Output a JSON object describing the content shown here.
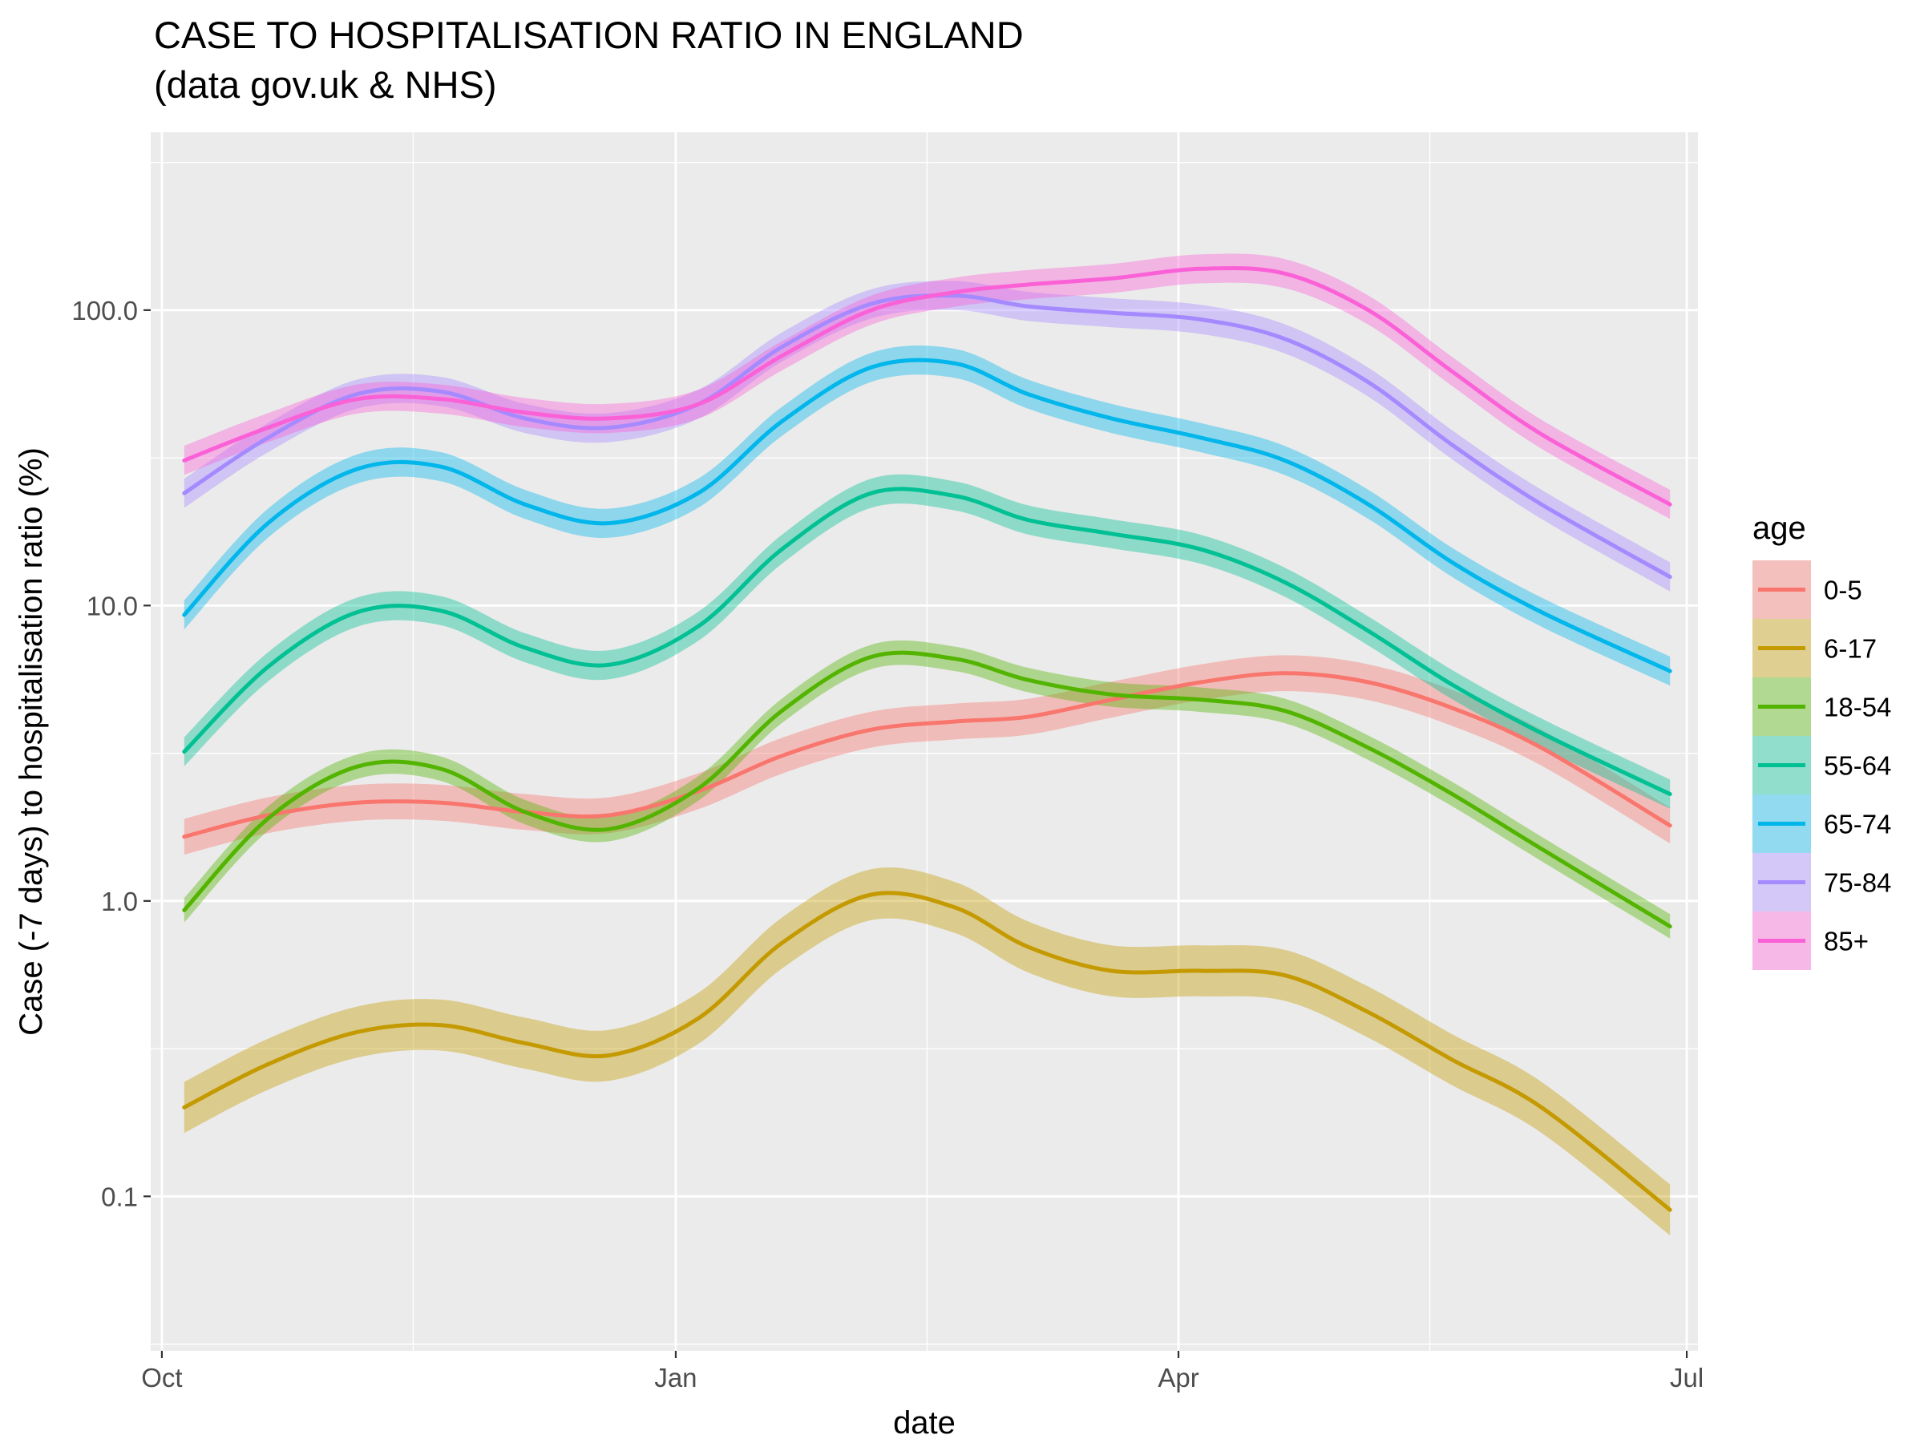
{
  "chart_data": {
    "type": "line",
    "title": "CASE TO HOSPITALISATION RATIO IN ENGLAND",
    "subtitle": "(data gov.uk & NHS)",
    "xlabel": "date",
    "ylabel": "Case (-7 days) to hospitalisation ratio (%)",
    "y_scale": "log10",
    "ylim": [
      0.03,
      400
    ],
    "xlim": [
      "2020-09-29",
      "2021-07-03"
    ],
    "x_ticks": [
      {
        "label": "Oct",
        "date": "2020-10-01"
      },
      {
        "label": "Jan",
        "date": "2021-01-01"
      },
      {
        "label": "Apr",
        "date": "2021-04-01"
      },
      {
        "label": "Jul",
        "date": "2021-07-01"
      }
    ],
    "x_minor_gridlines": [
      "2020-11-15",
      "2021-02-15",
      "2021-05-16"
    ],
    "y_ticks": [
      {
        "label": "0.1",
        "value": 0.1
      },
      {
        "label": "1.0",
        "value": 1
      },
      {
        "label": "10.0",
        "value": 10
      },
      {
        "label": "100.0",
        "value": 100
      }
    ],
    "y_minor_gridlines": [
      0.0316,
      0.316,
      3.16,
      31.6,
      316
    ],
    "grid": true,
    "legend": {
      "title": "age",
      "position": "right"
    },
    "band_opacity": 0.4,
    "series": [
      {
        "name": "0-5",
        "color": "#F8766D",
        "band_rel": 0.15,
        "points": [
          {
            "x": "2020-10-05",
            "y": 1.65
          },
          {
            "x": "2020-10-20",
            "y": 1.95
          },
          {
            "x": "2020-11-05",
            "y": 2.15
          },
          {
            "x": "2020-11-20",
            "y": 2.15
          },
          {
            "x": "2020-12-05",
            "y": 2.0
          },
          {
            "x": "2020-12-20",
            "y": 1.95
          },
          {
            "x": "2021-01-05",
            "y": 2.35
          },
          {
            "x": "2021-01-20",
            "y": 3.1
          },
          {
            "x": "2021-02-05",
            "y": 3.8
          },
          {
            "x": "2021-02-20",
            "y": 4.05
          },
          {
            "x": "2021-03-05",
            "y": 4.2
          },
          {
            "x": "2021-03-20",
            "y": 4.8
          },
          {
            "x": "2021-04-05",
            "y": 5.5
          },
          {
            "x": "2021-04-20",
            "y": 5.9
          },
          {
            "x": "2021-05-05",
            "y": 5.5
          },
          {
            "x": "2021-05-20",
            "y": 4.5
          },
          {
            "x": "2021-06-05",
            "y": 3.3
          },
          {
            "x": "2021-06-28",
            "y": 1.8
          }
        ]
      },
      {
        "name": "6-17",
        "color": "#C49A00",
        "band_rel": 0.22,
        "points": [
          {
            "x": "2020-10-05",
            "y": 0.2
          },
          {
            "x": "2020-10-20",
            "y": 0.28
          },
          {
            "x": "2020-11-05",
            "y": 0.36
          },
          {
            "x": "2020-11-20",
            "y": 0.38
          },
          {
            "x": "2020-12-05",
            "y": 0.33
          },
          {
            "x": "2020-12-20",
            "y": 0.3
          },
          {
            "x": "2021-01-05",
            "y": 0.4
          },
          {
            "x": "2021-01-20",
            "y": 0.72
          },
          {
            "x": "2021-02-05",
            "y": 1.05
          },
          {
            "x": "2021-02-20",
            "y": 0.95
          },
          {
            "x": "2021-03-05",
            "y": 0.7
          },
          {
            "x": "2021-03-20",
            "y": 0.58
          },
          {
            "x": "2021-04-05",
            "y": 0.58
          },
          {
            "x": "2021-04-20",
            "y": 0.56
          },
          {
            "x": "2021-05-05",
            "y": 0.42
          },
          {
            "x": "2021-05-20",
            "y": 0.29
          },
          {
            "x": "2021-06-05",
            "y": 0.2
          },
          {
            "x": "2021-06-28",
            "y": 0.09
          }
        ]
      },
      {
        "name": "18-54",
        "color": "#53B400",
        "band_rel": 0.1,
        "points": [
          {
            "x": "2020-10-05",
            "y": 0.93
          },
          {
            "x": "2020-10-20",
            "y": 1.9
          },
          {
            "x": "2020-11-05",
            "y": 2.85
          },
          {
            "x": "2020-11-20",
            "y": 2.8
          },
          {
            "x": "2020-12-05",
            "y": 2.0
          },
          {
            "x": "2020-12-20",
            "y": 1.75
          },
          {
            "x": "2021-01-05",
            "y": 2.4
          },
          {
            "x": "2021-01-20",
            "y": 4.4
          },
          {
            "x": "2021-02-05",
            "y": 6.7
          },
          {
            "x": "2021-02-20",
            "y": 6.6
          },
          {
            "x": "2021-03-05",
            "y": 5.6
          },
          {
            "x": "2021-03-20",
            "y": 5.0
          },
          {
            "x": "2021-04-05",
            "y": 4.8
          },
          {
            "x": "2021-04-20",
            "y": 4.4
          },
          {
            "x": "2021-05-05",
            "y": 3.3
          },
          {
            "x": "2021-05-20",
            "y": 2.3
          },
          {
            "x": "2021-06-05",
            "y": 1.5
          },
          {
            "x": "2021-06-28",
            "y": 0.82
          }
        ]
      },
      {
        "name": "55-64",
        "color": "#00C094",
        "band_rel": 0.12,
        "points": [
          {
            "x": "2020-10-05",
            "y": 3.2
          },
          {
            "x": "2020-10-20",
            "y": 6.2
          },
          {
            "x": "2020-11-05",
            "y": 9.5
          },
          {
            "x": "2020-11-20",
            "y": 9.6
          },
          {
            "x": "2020-12-05",
            "y": 7.2
          },
          {
            "x": "2020-12-20",
            "y": 6.3
          },
          {
            "x": "2021-01-05",
            "y": 8.5
          },
          {
            "x": "2021-01-20",
            "y": 15.5
          },
          {
            "x": "2021-02-05",
            "y": 24.0
          },
          {
            "x": "2021-02-20",
            "y": 23.5
          },
          {
            "x": "2021-03-05",
            "y": 19.5
          },
          {
            "x": "2021-03-20",
            "y": 17.5
          },
          {
            "x": "2021-04-05",
            "y": 15.5
          },
          {
            "x": "2021-04-20",
            "y": 12.0
          },
          {
            "x": "2021-05-05",
            "y": 8.2
          },
          {
            "x": "2021-05-20",
            "y": 5.4
          },
          {
            "x": "2021-06-05",
            "y": 3.7
          },
          {
            "x": "2021-06-28",
            "y": 2.3
          }
        ]
      },
      {
        "name": "65-74",
        "color": "#00B6EB",
        "band_rel": 0.12,
        "points": [
          {
            "x": "2020-10-05",
            "y": 9.3
          },
          {
            "x": "2020-10-20",
            "y": 19.0
          },
          {
            "x": "2020-11-05",
            "y": 29.0
          },
          {
            "x": "2020-11-20",
            "y": 29.5
          },
          {
            "x": "2020-12-05",
            "y": 22.0
          },
          {
            "x": "2020-12-20",
            "y": 19.0
          },
          {
            "x": "2021-01-05",
            "y": 24.0
          },
          {
            "x": "2021-01-20",
            "y": 42.0
          },
          {
            "x": "2021-02-05",
            "y": 64.0
          },
          {
            "x": "2021-02-20",
            "y": 66.0
          },
          {
            "x": "2021-03-05",
            "y": 52.0
          },
          {
            "x": "2021-03-20",
            "y": 43.0
          },
          {
            "x": "2021-04-05",
            "y": 37.0
          },
          {
            "x": "2021-04-20",
            "y": 31.0
          },
          {
            "x": "2021-05-05",
            "y": 22.0
          },
          {
            "x": "2021-05-20",
            "y": 14.0
          },
          {
            "x": "2021-06-05",
            "y": 9.5
          },
          {
            "x": "2021-06-28",
            "y": 6.0
          }
        ]
      },
      {
        "name": "75-84",
        "color": "#A58AFF",
        "band_rel": 0.12,
        "points": [
          {
            "x": "2020-10-05",
            "y": 24.0
          },
          {
            "x": "2020-10-20",
            "y": 37.0
          },
          {
            "x": "2020-11-05",
            "y": 52.0
          },
          {
            "x": "2020-11-20",
            "y": 53.0
          },
          {
            "x": "2020-12-05",
            "y": 43.0
          },
          {
            "x": "2020-12-20",
            "y": 40.0
          },
          {
            "x": "2021-01-05",
            "y": 48.0
          },
          {
            "x": "2021-01-20",
            "y": 75.0
          },
          {
            "x": "2021-02-05",
            "y": 105.0
          },
          {
            "x": "2021-02-20",
            "y": 112.0
          },
          {
            "x": "2021-03-05",
            "y": 103.0
          },
          {
            "x": "2021-03-20",
            "y": 98.0
          },
          {
            "x": "2021-04-05",
            "y": 93.0
          },
          {
            "x": "2021-04-20",
            "y": 80.0
          },
          {
            "x": "2021-05-05",
            "y": 57.0
          },
          {
            "x": "2021-05-20",
            "y": 35.0
          },
          {
            "x": "2021-06-05",
            "y": 22.0
          },
          {
            "x": "2021-06-28",
            "y": 12.5
          }
        ]
      },
      {
        "name": "85+",
        "color": "#FB61D7",
        "band_rel": 0.12,
        "points": [
          {
            "x": "2020-10-05",
            "y": 31.0
          },
          {
            "x": "2020-10-20",
            "y": 40.0
          },
          {
            "x": "2020-11-05",
            "y": 50.0
          },
          {
            "x": "2020-11-20",
            "y": 50.0
          },
          {
            "x": "2020-12-05",
            "y": 45.0
          },
          {
            "x": "2020-12-20",
            "y": 43.0
          },
          {
            "x": "2021-01-05",
            "y": 48.0
          },
          {
            "x": "2021-01-20",
            "y": 70.0
          },
          {
            "x": "2021-02-05",
            "y": 100.0
          },
          {
            "x": "2021-02-20",
            "y": 115.0
          },
          {
            "x": "2021-03-05",
            "y": 122.0
          },
          {
            "x": "2021-03-20",
            "y": 128.0
          },
          {
            "x": "2021-04-05",
            "y": 138.0
          },
          {
            "x": "2021-04-20",
            "y": 133.0
          },
          {
            "x": "2021-05-05",
            "y": 100.0
          },
          {
            "x": "2021-05-20",
            "y": 62.0
          },
          {
            "x": "2021-06-05",
            "y": 38.0
          },
          {
            "x": "2021-06-28",
            "y": 22.0
          }
        ]
      }
    ]
  }
}
